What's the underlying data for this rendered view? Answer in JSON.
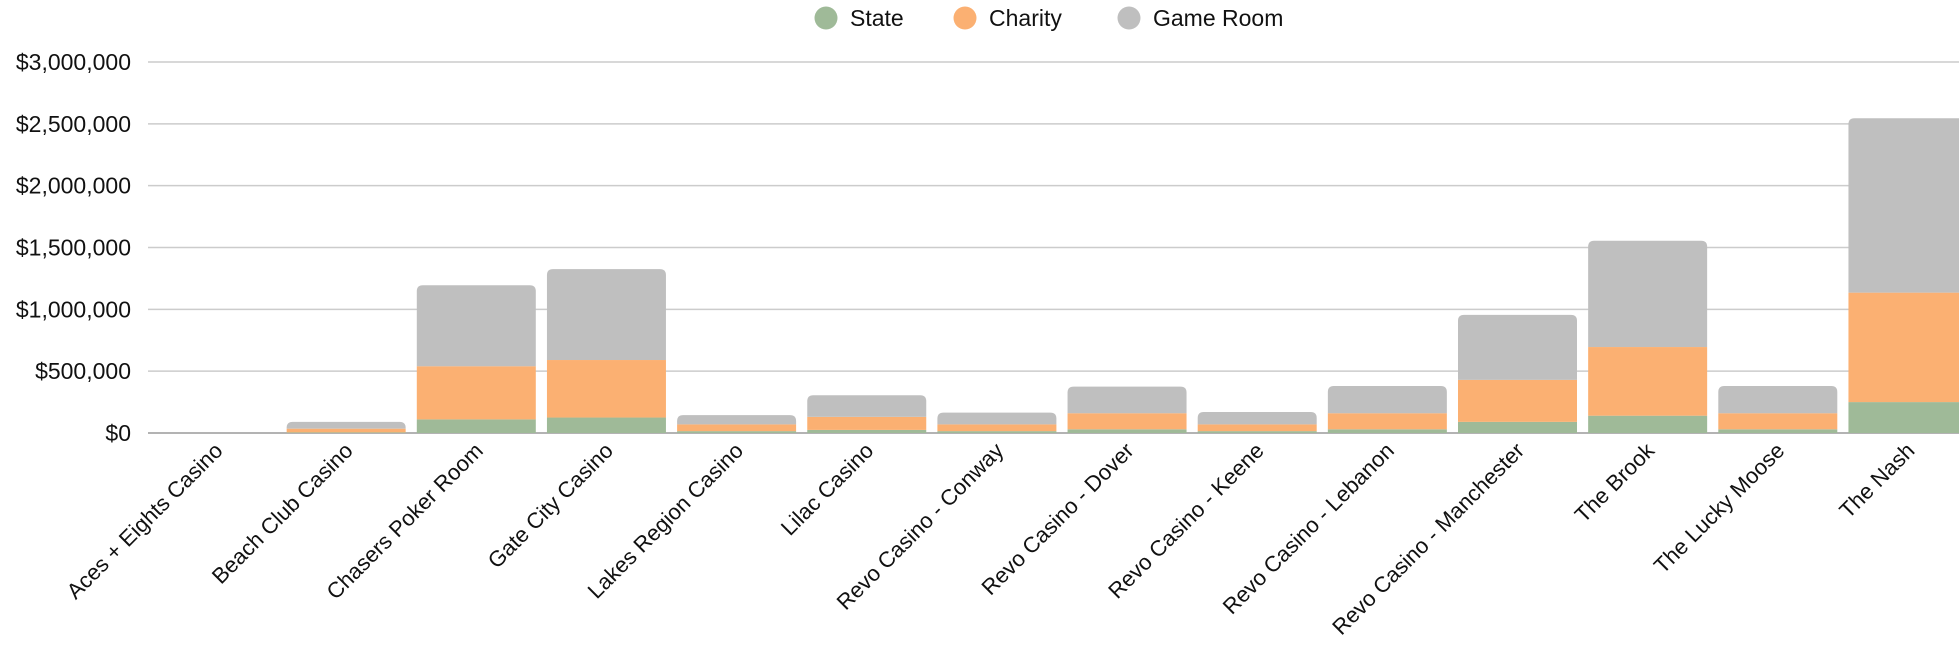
{
  "chart_data": {
    "type": "bar",
    "stacked": true,
    "categories": [
      "Aces + Eights Casino",
      "Beach Club Casino",
      "Chasers Poker Room",
      "Gate City Casino",
      "Lakes Region Casino",
      "Lilac Casino",
      "Revo Casino - Conway",
      "Revo Casino - Dover",
      "Revo Casino - Keene",
      "Revo Casino - Lebanon",
      "Revo Casino - Manchester",
      "The Brook",
      "The Lucky Moose",
      "The Nash"
    ],
    "series": [
      {
        "name": "State",
        "color": "#9fba98",
        "values": [
          0,
          5000,
          110000,
          125000,
          15000,
          25000,
          15000,
          30000,
          15000,
          30000,
          90000,
          140000,
          30000,
          250000
        ]
      },
      {
        "name": "Charity",
        "color": "#fbb072",
        "values": [
          0,
          30000,
          430000,
          465000,
          55000,
          105000,
          55000,
          130000,
          55000,
          130000,
          340000,
          555000,
          130000,
          885000
        ]
      },
      {
        "name": "Game Room",
        "color": "#bfbfbf",
        "values": [
          0,
          55000,
          655000,
          735000,
          75000,
          175000,
          95000,
          215000,
          100000,
          220000,
          525000,
          860000,
          220000,
          1410000
        ]
      }
    ],
    "ylim": [
      0,
      3000000
    ],
    "y_ticks": [
      "$0",
      "$500,000",
      "$1,000,000",
      "$1,500,000",
      "$2,000,000",
      "$2,500,000",
      "$3,000,000"
    ],
    "y_tick_values": [
      0,
      500000,
      1000000,
      1500000,
      2000000,
      2500000,
      3000000
    ],
    "grid": true,
    "legend_position": "top-center"
  }
}
